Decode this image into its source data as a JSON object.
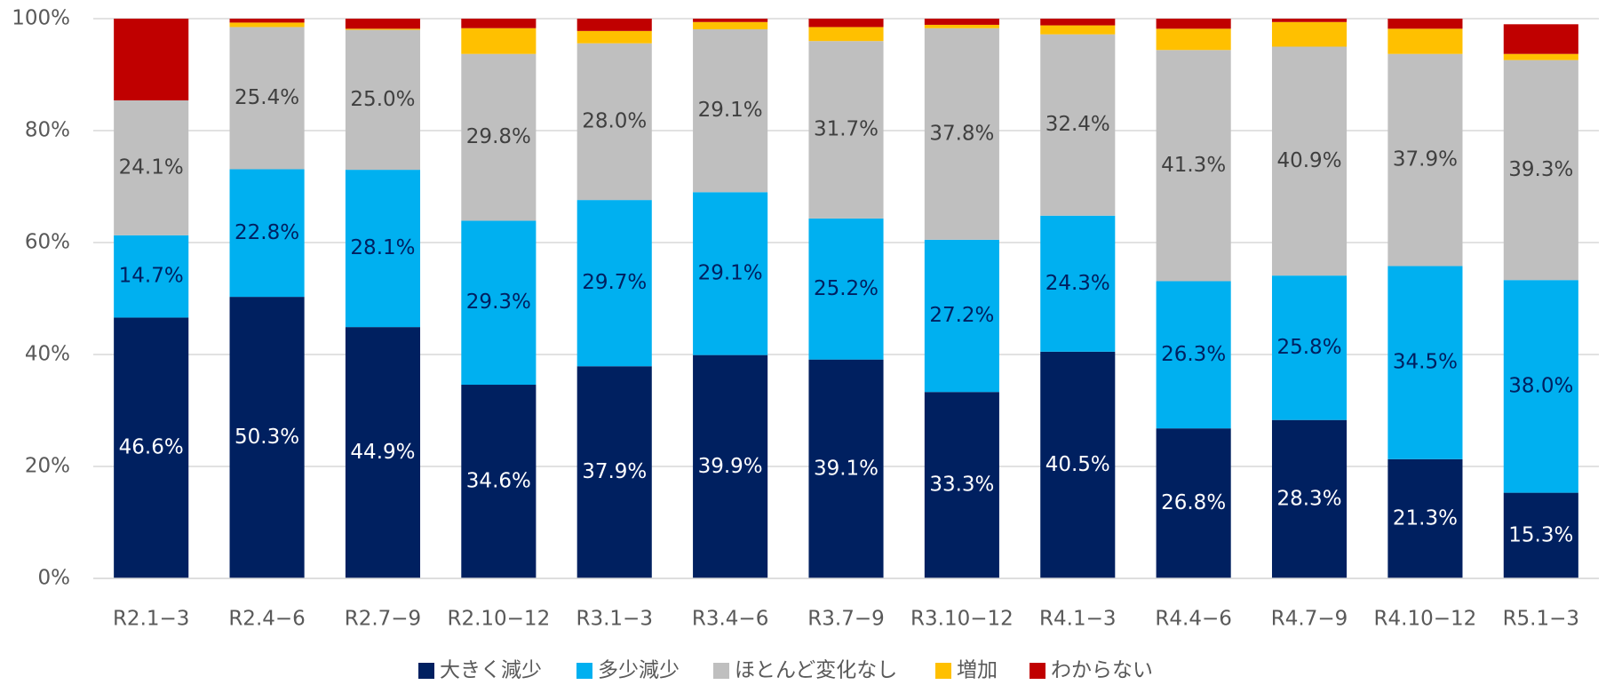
{
  "chart_data": {
    "type": "stacked_bar",
    "categories": [
      "R2.1−3",
      "R2.4−6",
      "R2.7−9",
      "R2.10−12",
      "R3.1−3",
      "R3.4−6",
      "R3.7−9",
      "R3.10−12",
      "R4.1−3",
      "R4.4−6",
      "R4.7−9",
      "R4.10−12",
      "R5.1−3"
    ],
    "series": [
      {
        "name": "大きく減少",
        "color": "#002060",
        "label_color": "#ffffff",
        "values": [
          46.6,
          50.3,
          44.9,
          34.6,
          37.9,
          39.9,
          39.1,
          33.3,
          40.5,
          26.8,
          28.3,
          21.3,
          15.3
        ],
        "value_labels": [
          "46.6%",
          "50.3%",
          "44.9%",
          "34.6%",
          "37.9%",
          "39.9%",
          "39.1%",
          "33.3%",
          "40.5%",
          "26.8%",
          "28.3%",
          "21.3%",
          "15.3%"
        ]
      },
      {
        "name": "多少減少",
        "color": "#00b0f0",
        "label_color": "#002060",
        "values": [
          14.7,
          22.8,
          28.1,
          29.3,
          29.7,
          29.1,
          25.2,
          27.2,
          24.3,
          26.3,
          25.8,
          34.5,
          38.0
        ],
        "value_labels": [
          "14.7%",
          "22.8%",
          "28.1%",
          "29.3%",
          "29.7%",
          "29.1%",
          "25.2%",
          "27.2%",
          "24.3%",
          "26.3%",
          "25.8%",
          "34.5%",
          "38.0%"
        ]
      },
      {
        "name": "ほとんど変化なし",
        "color": "#bfbfbf",
        "label_color": "#404040",
        "values": [
          24.1,
          25.4,
          25.0,
          29.8,
          28.0,
          29.1,
          31.7,
          37.8,
          32.4,
          41.3,
          40.9,
          37.9,
          39.3
        ],
        "value_labels": [
          "24.1%",
          "25.4%",
          "25.0%",
          "29.8%",
          "28.0%",
          "29.1%",
          "31.7%",
          "37.8%",
          "32.4%",
          "41.3%",
          "40.9%",
          "37.9%",
          "39.3%"
        ]
      },
      {
        "name": "増加",
        "color": "#ffc000",
        "values": [
          0.0,
          0.8,
          0.2,
          4.6,
          2.2,
          1.3,
          2.5,
          0.6,
          1.6,
          3.8,
          4.4,
          4.5,
          1.1
        ]
      },
      {
        "name": "わからない",
        "color": "#c00000",
        "values": [
          14.6,
          0.7,
          1.8,
          1.7,
          2.2,
          0.6,
          1.5,
          1.1,
          1.2,
          1.8,
          0.6,
          1.8,
          5.3
        ]
      }
    ],
    "ylim": [
      0,
      100
    ],
    "yticks": [
      {
        "value": 0,
        "label": "0%"
      },
      {
        "value": 20,
        "label": "20%"
      },
      {
        "value": 40,
        "label": "40%"
      },
      {
        "value": 60,
        "label": "60%"
      },
      {
        "value": 80,
        "label": "80%"
      },
      {
        "value": 100,
        "label": "100%"
      }
    ],
    "grid": true,
    "legend": "bottom"
  }
}
